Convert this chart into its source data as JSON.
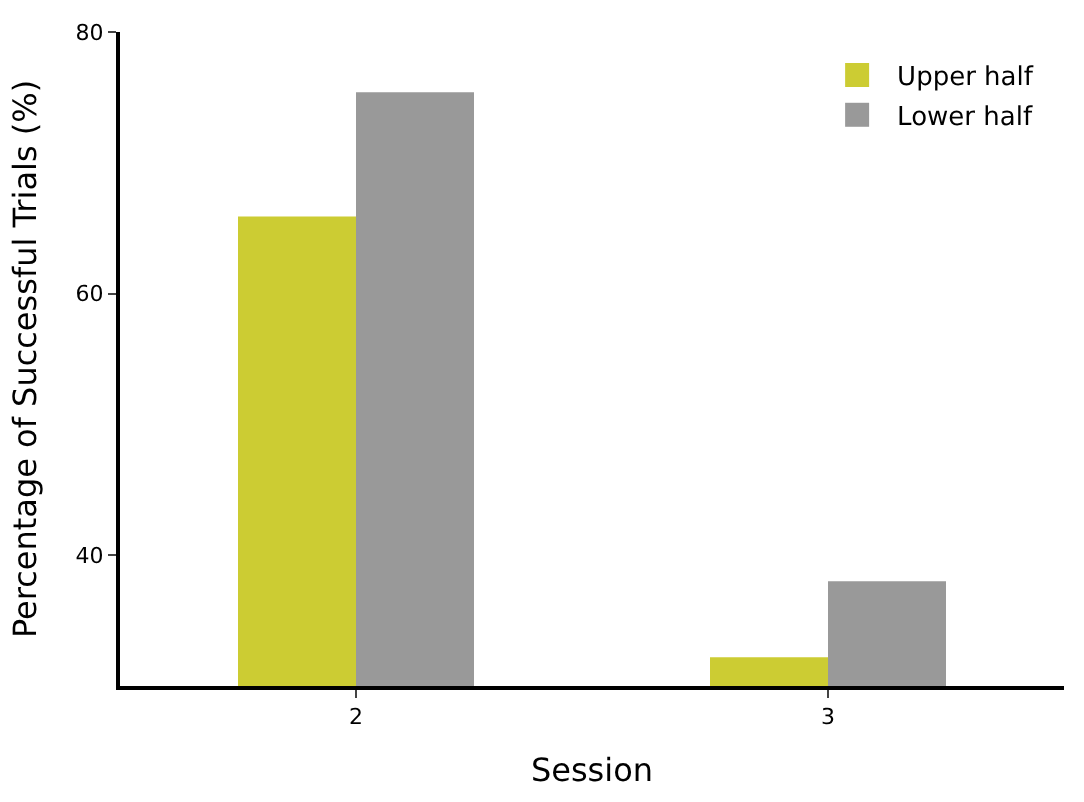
{
  "chart_data": {
    "type": "bar",
    "xlabel": "Session",
    "ylabel": "Percentage of Successful Trials (%)",
    "categories": [
      "2",
      "3"
    ],
    "series": [
      {
        "name": "Upper half",
        "color": "#cccc33",
        "values": [
          65.9,
          32.2
        ]
      },
      {
        "name": "Lower half",
        "color": "#999999",
        "values": [
          75.4,
          38.0
        ]
      }
    ],
    "ylim": [
      30,
      80
    ],
    "yticks": [
      40,
      60,
      80
    ],
    "legend": "top right"
  }
}
